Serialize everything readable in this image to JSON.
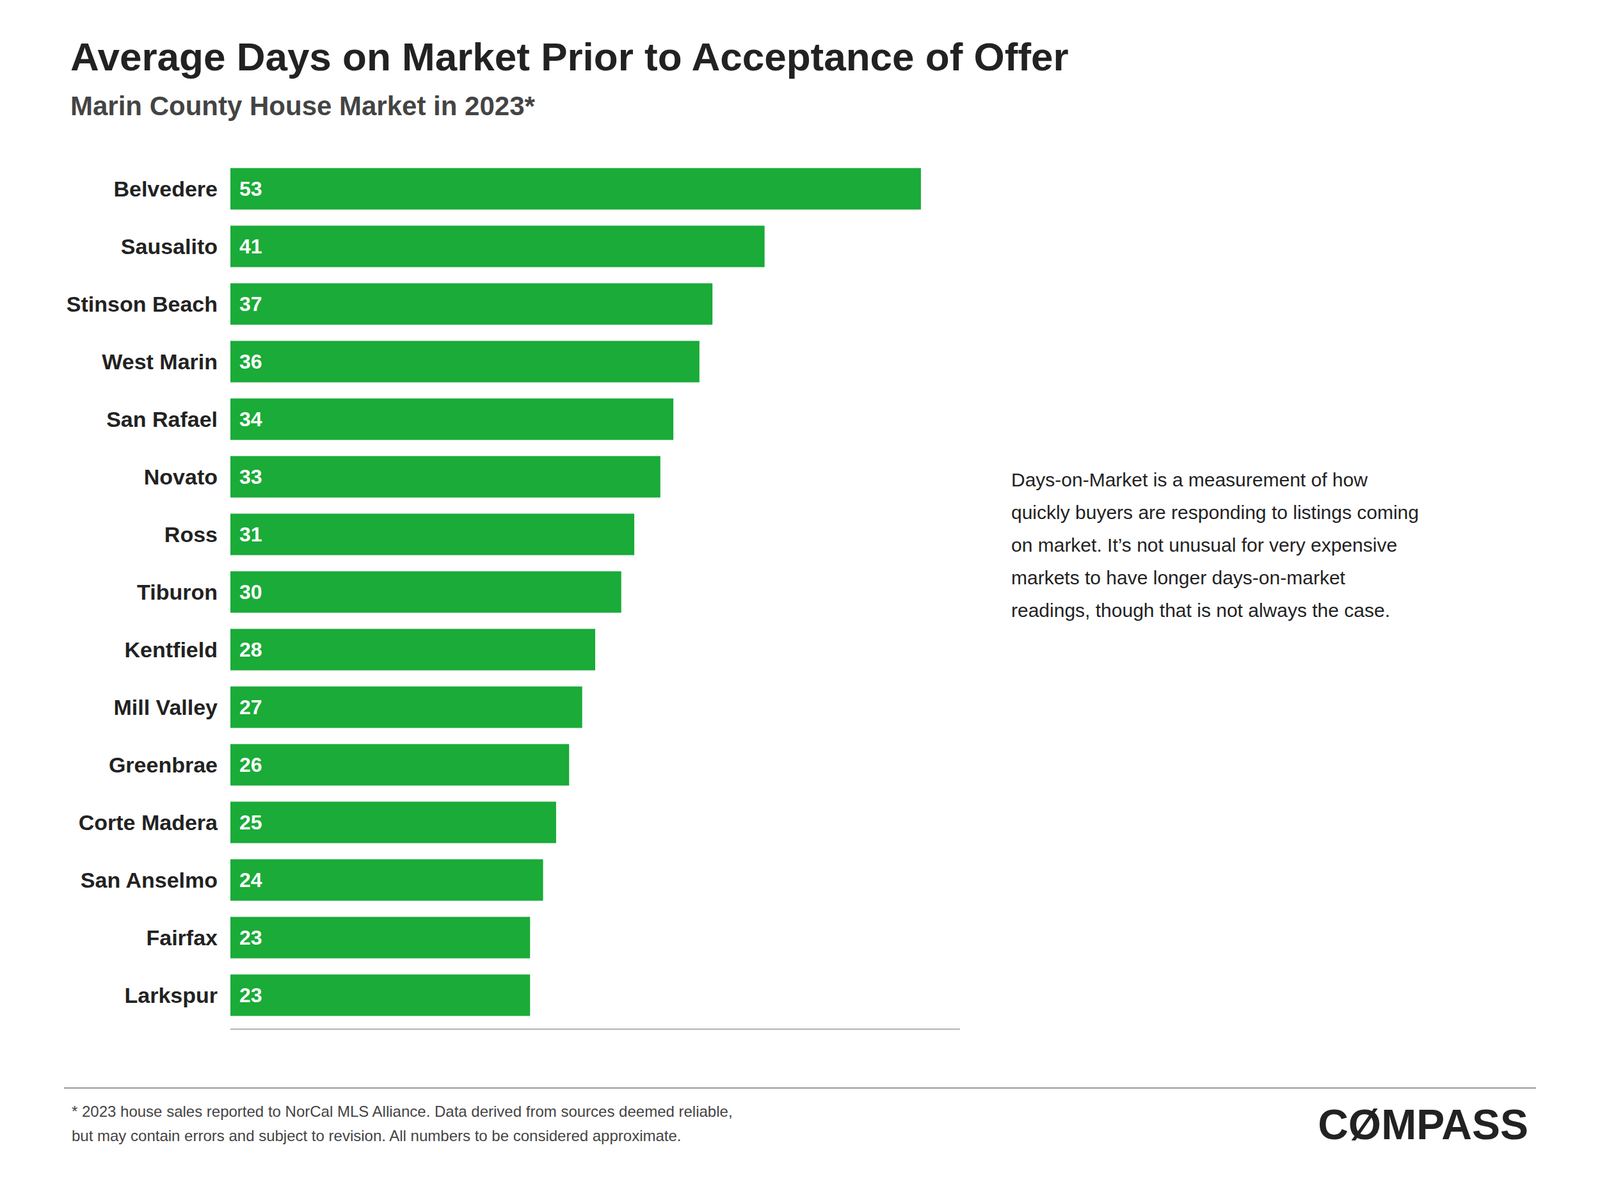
{
  "chart_data": {
    "type": "bar",
    "orientation": "horizontal",
    "title": "Average Days on Market Prior to Acceptance of Offer",
    "subtitle": "Marin County House Market in 2023*",
    "categories": [
      "Belvedere",
      "Sausalito",
      "Stinson Beach",
      "West Marin",
      "San Rafael",
      "Novato",
      "Ross",
      "Tiburon",
      "Kentfield",
      "Mill Valley",
      "Greenbrae",
      "Corte Madera",
      "San Anselmo",
      "Fairfax",
      "Larkspur"
    ],
    "values": [
      53,
      41,
      37,
      36,
      34,
      33,
      31,
      30,
      28,
      27,
      26,
      25,
      24,
      23,
      23
    ],
    "color": "#1aab38",
    "xlim": [
      0,
      56
    ],
    "data_labels": true,
    "tick_labels": "y",
    "annotations": [
      "Days-on-Market is a measurement of how\nquickly buyers are responding to listings coming\non market. It’s not unusual for very expensive\nmarkets to have longer days-on-market\nreadings, though that is not always the case.",
      "* 2023 house sales reported to NorCal MLS Alliance. Data derived from sources deemed reliable,\nbut may contain errors and subject to revision. All numbers to be considered approximate.",
      "CØMPASS"
    ]
  }
}
